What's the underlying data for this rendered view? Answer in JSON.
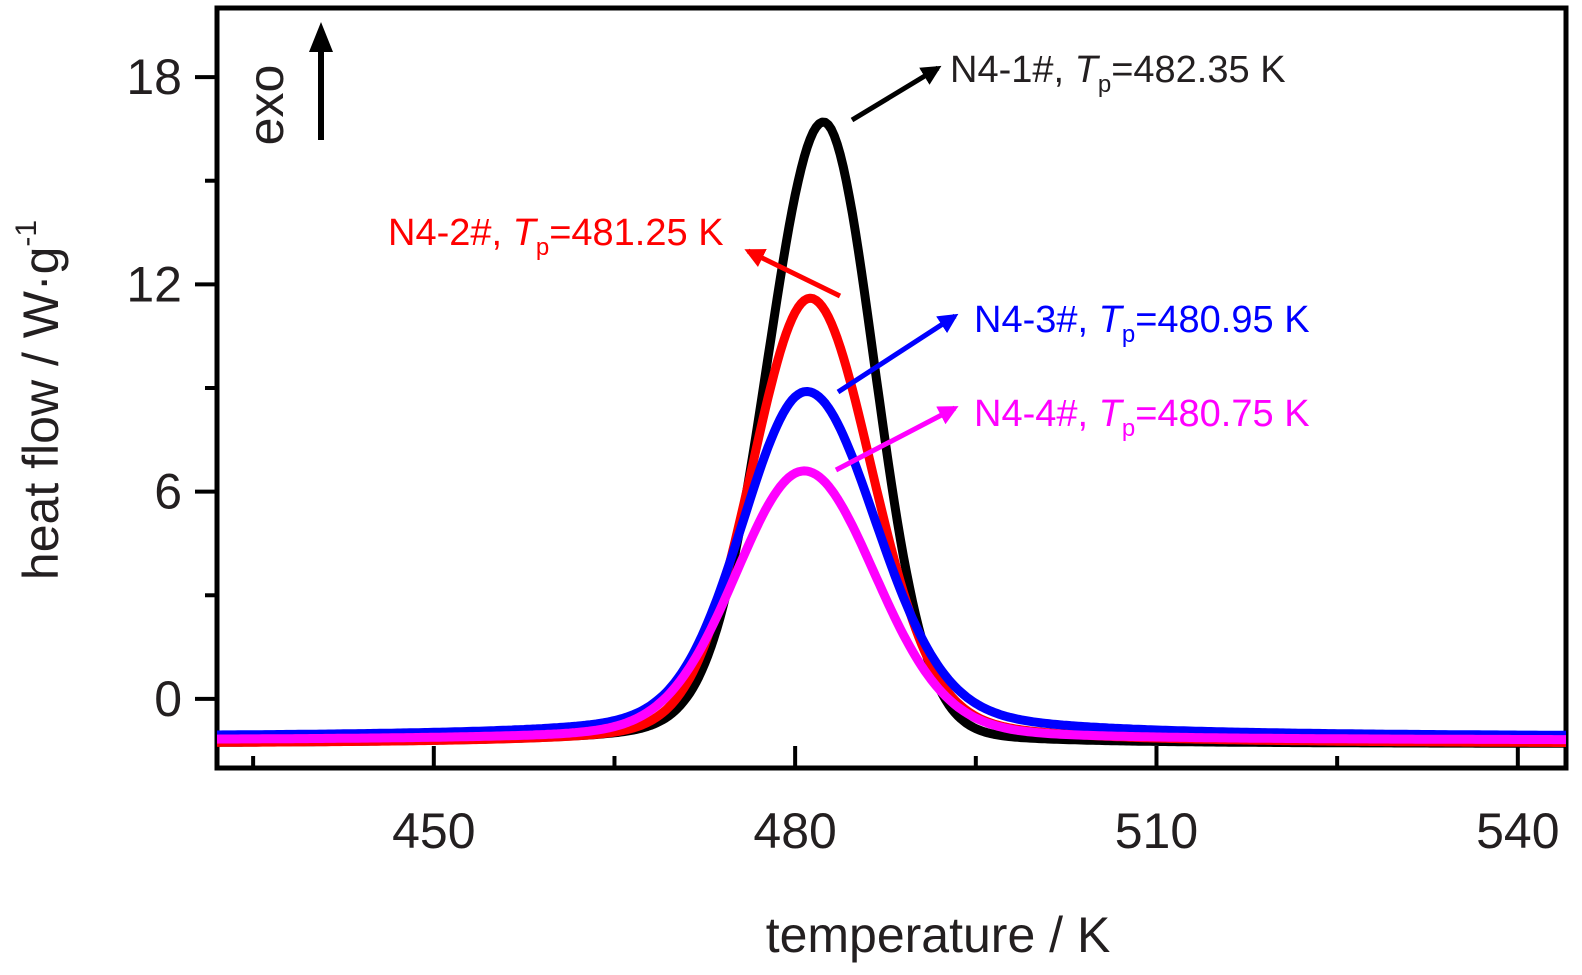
{
  "chart_data": {
    "type": "line",
    "xlabel": "temperature / K",
    "ylabel_text": "heat flow / W·g",
    "ylabel_exponent": "-1",
    "direction_label": "exo",
    "xlim": [
      432,
      544
    ],
    "ylim": [
      -2,
      20
    ],
    "x_ticks": [
      450,
      480,
      510,
      540
    ],
    "y_ticks": [
      0,
      6,
      12,
      18
    ],
    "grid": false,
    "series": [
      {
        "name": "N4-1#",
        "tp": "482.35 K",
        "color": "#000000",
        "peak_x": 482.35,
        "peak_y": 16.7,
        "baseline": -1.3,
        "w_left": 4.6,
        "w_right": 4.2,
        "tail_left": 9,
        "tail_right": 8,
        "tail_frac_left": 0.08,
        "tail_frac_right": 0.05
      },
      {
        "name": "N4-2#",
        "tp": "481.25 K",
        "color": "#ff0000",
        "peak_x": 481.25,
        "peak_y": 11.6,
        "baseline": -1.3,
        "w_left": 4.8,
        "w_right": 5.0,
        "tail_left": 9,
        "tail_right": 10,
        "tail_frac_left": 0.1,
        "tail_frac_right": 0.12
      },
      {
        "name": "N4-3#",
        "tp": "480.95 K",
        "color": "#0000ff",
        "peak_x": 480.95,
        "peak_y": 8.9,
        "baseline": -1.1,
        "w_left": 5.2,
        "w_right": 5.6,
        "tail_left": 10,
        "tail_right": 11,
        "tail_frac_left": 0.14,
        "tail_frac_right": 0.16
      },
      {
        "name": "N4-4#",
        "tp": "480.75 K",
        "color": "#ff00ff",
        "peak_x": 480.75,
        "peak_y": 6.6,
        "baseline": -1.2,
        "w_left": 5.6,
        "w_right": 5.8,
        "tail_left": 10,
        "tail_right": 10,
        "tail_frac_left": 0.12,
        "tail_frac_right": 0.12
      }
    ]
  }
}
